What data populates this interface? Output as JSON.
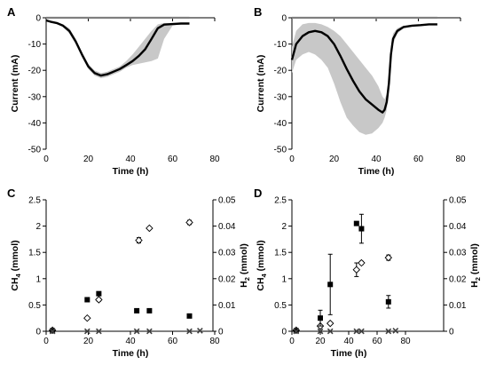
{
  "chart_data": [
    {
      "panel": "A",
      "type": "line",
      "xlabel": "Time (h)",
      "ylabel": "Current (mA)",
      "xlim": [
        0,
        80
      ],
      "ylim": [
        -50,
        0
      ],
      "xticks": [
        0,
        20,
        40,
        60,
        80
      ],
      "yticks": [
        0,
        -10,
        -20,
        -30,
        -40,
        -50
      ],
      "series": [
        {
          "color": "#7f7f7f",
          "style": "line",
          "x": [
            0,
            10,
            20,
            30,
            40,
            50,
            60,
            68
          ],
          "y": [
            0,
            0,
            0,
            0,
            0,
            0,
            0,
            0
          ]
        },
        {
          "color": "#000000",
          "style": "line-with-band",
          "band_color": "#c8c8c8",
          "x": [
            0,
            2,
            5,
            8,
            11,
            14,
            17,
            20,
            23,
            26,
            29,
            32,
            35,
            38,
            41,
            44,
            47,
            50,
            53,
            56,
            60,
            64,
            68
          ],
          "y": [
            -1,
            -1.5,
            -2,
            -3,
            -5,
            -9,
            -14,
            -18.5,
            -21,
            -22,
            -21.5,
            -20.5,
            -19.5,
            -18,
            -16.5,
            -14.5,
            -12,
            -8,
            -4,
            -2.6,
            -2.4,
            -2.2,
            -2.2
          ],
          "y_low": [
            -1,
            -1.5,
            -2.2,
            -3.5,
            -6,
            -10,
            -15,
            -19.5,
            -22,
            -23,
            -22.5,
            -21.5,
            -20.5,
            -19,
            -18,
            -17.5,
            -17,
            -16.5,
            -15.5,
            -8,
            -3,
            -2.5,
            -2.4
          ],
          "y_high": [
            -1,
            -1.5,
            -1.8,
            -2.5,
            -4,
            -8,
            -13,
            -17.5,
            -20,
            -21,
            -20.5,
            -19.5,
            -18.5,
            -16.5,
            -14,
            -11,
            -8,
            -5,
            -2.5,
            -2,
            -2,
            -2,
            -2
          ]
        }
      ]
    },
    {
      "panel": "B",
      "type": "line",
      "xlabel": "Time (h)",
      "ylabel": "Current (mA)",
      "xlim": [
        0,
        80
      ],
      "ylim": [
        -50,
        0
      ],
      "xticks": [
        0,
        20,
        40,
        60,
        80
      ],
      "yticks": [
        0,
        -10,
        -20,
        -30,
        -40,
        -50
      ],
      "series": [
        {
          "color": "#7f7f7f",
          "style": "line",
          "x": [
            0,
            10,
            20,
            30,
            40,
            50,
            60,
            69
          ],
          "y": [
            0,
            0,
            0,
            0,
            0,
            0,
            0,
            0
          ]
        },
        {
          "color": "#000000",
          "style": "line-with-band",
          "band_color": "#c8c8c8",
          "x": [
            0,
            2,
            5,
            8,
            11,
            14,
            17,
            20,
            23,
            26,
            29,
            32,
            35,
            38,
            41,
            43,
            44,
            45,
            46,
            47,
            48,
            50,
            53,
            57,
            61,
            65,
            69
          ],
          "y": [
            -16,
            -10,
            -7,
            -5.5,
            -5,
            -5.5,
            -7,
            -10,
            -14.5,
            -19.5,
            -24,
            -28,
            -31,
            -33,
            -35,
            -36,
            -35,
            -32,
            -25,
            -14,
            -8,
            -5,
            -3.5,
            -3,
            -2.8,
            -2.5,
            -2.5
          ],
          "y_low": [
            -21,
            -16,
            -14,
            -13,
            -14,
            -16,
            -19,
            -25,
            -32,
            -38,
            -41,
            -43.5,
            -44.5,
            -44,
            -42,
            -40,
            -38,
            -35,
            -28,
            -17,
            -10,
            -6,
            -4,
            -3.3,
            -3,
            -2.8,
            -2.8
          ],
          "y_high": [
            -11,
            -5,
            -2.5,
            -2,
            -2,
            -2.5,
            -3.5,
            -5,
            -7,
            -10,
            -13,
            -16,
            -19,
            -22,
            -26,
            -30,
            -31,
            -29,
            -22,
            -11,
            -6,
            -4,
            -3,
            -2.7,
            -2.5,
            -2.3,
            -2.3
          ]
        }
      ]
    },
    {
      "panel": "C",
      "type": "scatter",
      "xlabel": "Time (h)",
      "ylabel": "CH4 (mmol)",
      "y2label": "H2 (mmol)",
      "xlim": [
        0,
        80
      ],
      "ylim": [
        0,
        2.5
      ],
      "y2lim": [
        0,
        0.05
      ],
      "xticks": [
        0,
        20,
        40,
        60,
        80
      ],
      "yticks": [
        0,
        0.5,
        1,
        1.5,
        2,
        2.5
      ],
      "y2ticks": [
        0,
        0.01,
        0.02,
        0.03,
        0.04,
        0.05
      ],
      "y2ticklabels": [
        "0",
        "0.01",
        "0.02",
        "0.03",
        "0.04",
        "0.05"
      ],
      "series": [
        {
          "marker": "diamond-open",
          "axis": "left",
          "x": [
            3,
            19.5,
            25,
            44,
            49,
            68
          ],
          "y": [
            0.02,
            0.25,
            0.6,
            1.73,
            1.96,
            2.07
          ],
          "err": [
            0,
            0.02,
            0.03,
            0.05,
            0.02,
            0.04
          ]
        },
        {
          "marker": "square-filled",
          "axis": "right",
          "x": [
            3,
            19.5,
            25,
            43,
            49,
            68
          ],
          "y": [
            0.0002,
            0.012,
            0.0143,
            0.0078,
            0.0078,
            0.0058
          ],
          "err": [
            0,
            0,
            0,
            0,
            0.0006,
            0
          ]
        },
        {
          "marker": "x",
          "axis": "left",
          "x": [
            3,
            19.5,
            25,
            43,
            49,
            68,
            73
          ],
          "y": [
            0,
            0,
            0,
            0,
            0,
            0,
            0.01
          ],
          "err": [
            0,
            0,
            0,
            0,
            0,
            0,
            0
          ]
        }
      ]
    },
    {
      "panel": "D",
      "type": "scatter",
      "xlabel": "Time (h)",
      "ylabel": "CH4 (mmol)",
      "y2label": "H2 (mmol)",
      "xlim": [
        0,
        80
      ],
      "ylim": [
        0,
        2.5
      ],
      "y2lim": [
        0,
        0.05
      ],
      "xticks": [
        0,
        20,
        40,
        60,
        80
      ],
      "yticks": [
        0,
        0.5,
        1,
        1.5,
        2,
        2.5
      ],
      "y2ticks": [
        0,
        0.01,
        0.02,
        0.03,
        0.04,
        0.05
      ],
      "y2ticklabels": [
        "0",
        "0.01",
        "0.02",
        "0.03",
        "0.04",
        "0.05"
      ],
      "series": [
        {
          "marker": "diamond-open",
          "axis": "left",
          "x": [
            3,
            20,
            27,
            45.5,
            49,
            68
          ],
          "y": [
            0.02,
            0.1,
            0.15,
            1.17,
            1.3,
            1.4
          ],
          "err": [
            0,
            0.02,
            0.02,
            0.13,
            0.03,
            0.05
          ]
        },
        {
          "marker": "square-filled",
          "axis": "right",
          "x": [
            3,
            20,
            27,
            45.5,
            49,
            68
          ],
          "y": [
            0.0002,
            0.005,
            0.0178,
            0.041,
            0.039,
            0.0112
          ],
          "err": [
            0,
            0.003,
            0.0115,
            0,
            0.0055,
            0.0024
          ]
        },
        {
          "marker": "x",
          "axis": "left",
          "x": [
            3,
            20,
            27,
            45.5,
            49,
            68,
            73
          ],
          "y": [
            0,
            0,
            0,
            0,
            0,
            0,
            0.01
          ],
          "err": [
            0,
            0,
            0,
            0,
            0,
            0,
            0
          ]
        }
      ]
    }
  ]
}
